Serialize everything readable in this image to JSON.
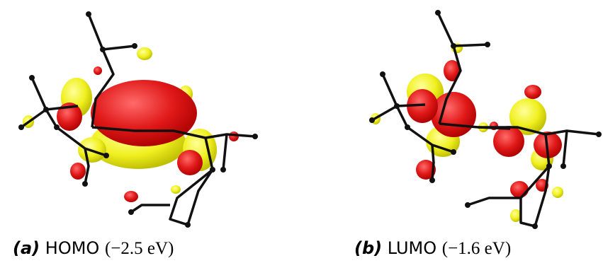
{
  "figure": {
    "panels": [
      {
        "label": "(a)",
        "orbital": "HOMO",
        "energy": "(−2.5 eV)"
      },
      {
        "label": "(b)",
        "orbital": "LUMO",
        "energy": "(−1.6 eV)"
      }
    ]
  }
}
